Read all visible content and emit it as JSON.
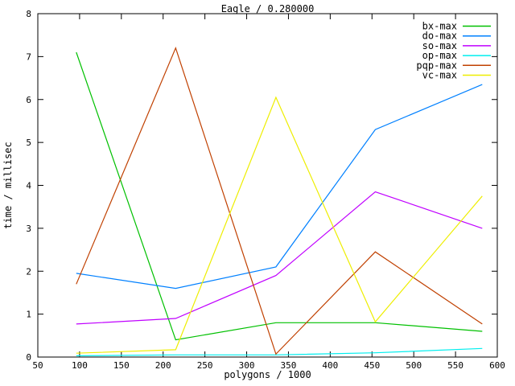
{
  "window": {
    "background_color": "#ffffff",
    "foreground_color": "#000000"
  },
  "chart_data": {
    "type": "line",
    "title": "Eagle / 0.280000",
    "xlabel": "polygons / 1000",
    "ylabel": "time / millisec",
    "xlim": [
      50,
      600
    ],
    "ylim": [
      0,
      8
    ],
    "xticks": [
      50,
      100,
      150,
      200,
      250,
      300,
      350,
      400,
      450,
      500,
      550,
      600
    ],
    "yticks": [
      0,
      1,
      2,
      3,
      4,
      5,
      6,
      7,
      8
    ],
    "grid": false,
    "legend_position": "top-right-inside",
    "x": [
      96,
      215,
      335,
      454,
      582
    ],
    "series": [
      {
        "name": "bx-max",
        "color": "#00c000",
        "values": [
          7.1,
          0.4,
          0.8,
          0.8,
          0.6
        ]
      },
      {
        "name": "do-max",
        "color": "#0080ff",
        "values": [
          1.95,
          1.6,
          2.1,
          5.3,
          6.35
        ]
      },
      {
        "name": "so-max",
        "color": "#c000ff",
        "values": [
          0.77,
          0.9,
          1.9,
          3.85,
          3.0
        ]
      },
      {
        "name": "op-max",
        "color": "#00eeee",
        "values": [
          0.03,
          0.05,
          0.05,
          0.1,
          0.2
        ]
      },
      {
        "name": "pqp-max",
        "color": "#c04000",
        "values": [
          1.7,
          7.2,
          0.07,
          2.45,
          0.77
        ]
      },
      {
        "name": "vc-max",
        "color": "#eeee00",
        "values": [
          0.09,
          0.17,
          6.05,
          0.82,
          3.75
        ]
      }
    ]
  }
}
